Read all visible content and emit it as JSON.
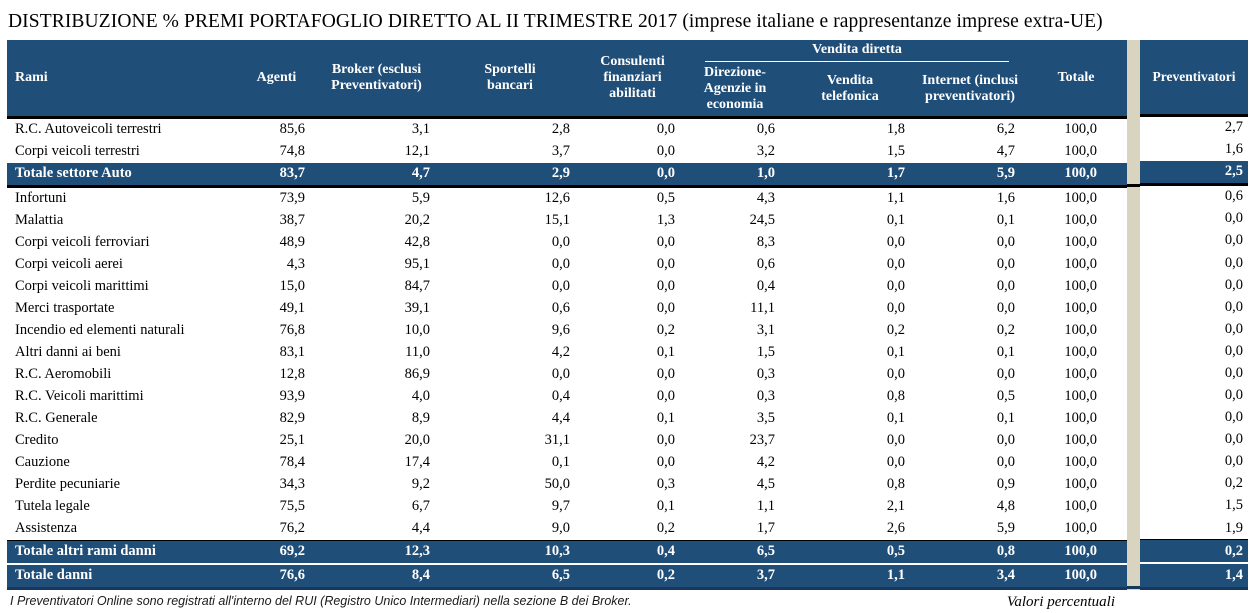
{
  "title": "DISTRIBUZIONE % PREMI PORTAFOGLIO DIRETTO AL II TRIMESTRE 2017 (imprese italiane e rappresentanze imprese extra-UE)",
  "colors": {
    "header_blue": "#1F4E79",
    "total_row_blue": "#1F4E79",
    "section_divider_beige": "#D9D4BF",
    "bottom_line_navy": "#17375E",
    "header_text": "#FFFFFF"
  },
  "header": {
    "rami": "Rami",
    "agenti": "Agenti",
    "broker": "Broker (esclusi Preventivatori)",
    "sportelli": "Sportelli bancari",
    "consulenti": "Consulenti finanziari abilitati",
    "vendita_diretta_group": "Vendita diretta",
    "direzione": "Direzione-Agenzie in economia",
    "telefonica": "Vendita telefonica",
    "internet": "Internet (inclusi preventivatori)",
    "totale": "Totale",
    "preventivatori": "Preventivatori"
  },
  "rows": [
    {
      "label": "R.C. Autoveicoli terrestri",
      "type": "data",
      "values": [
        "85,6",
        "3,1",
        "2,8",
        "0,0",
        "0,6",
        "1,8",
        "6,2",
        "100,0"
      ],
      "preventivatori": "2,7"
    },
    {
      "label": "Corpi veicoli terrestri",
      "type": "data",
      "values": [
        "74,8",
        "12,1",
        "3,7",
        "0,0",
        "3,2",
        "1,5",
        "4,7",
        "100,0"
      ],
      "preventivatori": "1,6"
    },
    {
      "label": "Totale settore Auto",
      "type": "total",
      "divider_after": true,
      "values": [
        "83,7",
        "4,7",
        "2,9",
        "0,0",
        "1,0",
        "1,7",
        "5,9",
        "100,0"
      ],
      "preventivatori": "2,5"
    },
    {
      "label": "Infortuni",
      "type": "data",
      "values": [
        "73,9",
        "5,9",
        "12,6",
        "0,5",
        "4,3",
        "1,1",
        "1,6",
        "100,0"
      ],
      "preventivatori": "0,6"
    },
    {
      "label": "Malattia",
      "type": "data",
      "values": [
        "38,7",
        "20,2",
        "15,1",
        "1,3",
        "24,5",
        "0,1",
        "0,1",
        "100,0"
      ],
      "preventivatori": "0,0"
    },
    {
      "label": "Corpi veicoli ferroviari",
      "type": "data",
      "values": [
        "48,9",
        "42,8",
        "0,0",
        "0,0",
        "8,3",
        "0,0",
        "0,0",
        "100,0"
      ],
      "preventivatori": "0,0"
    },
    {
      "label": "Corpi veicoli aerei",
      "type": "data",
      "values": [
        "4,3",
        "95,1",
        "0,0",
        "0,0",
        "0,6",
        "0,0",
        "0,0",
        "100,0"
      ],
      "preventivatori": "0,0"
    },
    {
      "label": "Corpi veicoli marittimi",
      "type": "data",
      "values": [
        "15,0",
        "84,7",
        "0,0",
        "0,0",
        "0,4",
        "0,0",
        "0,0",
        "100,0"
      ],
      "preventivatori": "0,0"
    },
    {
      "label": "Merci trasportate",
      "type": "data",
      "values": [
        "49,1",
        "39,1",
        "0,6",
        "0,0",
        "11,1",
        "0,0",
        "0,0",
        "100,0"
      ],
      "preventivatori": "0,0"
    },
    {
      "label": "Incendio ed elementi naturali",
      "type": "data",
      "values": [
        "76,8",
        "10,0",
        "9,6",
        "0,2",
        "3,1",
        "0,2",
        "0,2",
        "100,0"
      ],
      "preventivatori": "0,0"
    },
    {
      "label": "Altri danni ai beni",
      "type": "data",
      "values": [
        "83,1",
        "11,0",
        "4,2",
        "0,1",
        "1,5",
        "0,1",
        "0,1",
        "100,0"
      ],
      "preventivatori": "0,0"
    },
    {
      "label": "R.C. Aeromobili",
      "type": "data",
      "values": [
        "12,8",
        "86,9",
        "0,0",
        "0,0",
        "0,3",
        "0,0",
        "0,0",
        "100,0"
      ],
      "preventivatori": "0,0"
    },
    {
      "label": "R.C. Veicoli marittimi",
      "type": "data",
      "values": [
        "93,9",
        "4,0",
        "0,4",
        "0,0",
        "0,3",
        "0,8",
        "0,5",
        "100,0"
      ],
      "preventivatori": "0,0"
    },
    {
      "label": "R.C. Generale",
      "type": "data",
      "values": [
        "82,9",
        "8,9",
        "4,4",
        "0,1",
        "3,5",
        "0,1",
        "0,1",
        "100,0"
      ],
      "preventivatori": "0,0"
    },
    {
      "label": "Credito",
      "type": "data",
      "values": [
        "25,1",
        "20,0",
        "31,1",
        "0,0",
        "23,7",
        "0,0",
        "0,0",
        "100,0"
      ],
      "preventivatori": "0,0"
    },
    {
      "label": "Cauzione",
      "type": "data",
      "values": [
        "78,4",
        "17,4",
        "0,1",
        "0,0",
        "4,2",
        "0,0",
        "0,0",
        "100,0"
      ],
      "preventivatori": "0,0"
    },
    {
      "label": "Perdite pecuniarie",
      "type": "data",
      "values": [
        "34,3",
        "9,2",
        "50,0",
        "0,3",
        "4,5",
        "0,8",
        "0,9",
        "100,0"
      ],
      "preventivatori": "0,2"
    },
    {
      "label": "Tutela legale",
      "type": "data",
      "values": [
        "75,5",
        "6,7",
        "9,7",
        "0,1",
        "1,1",
        "2,1",
        "4,8",
        "100,0"
      ],
      "preventivatori": "1,5"
    },
    {
      "label": "Assistenza",
      "type": "data",
      "values": [
        "76,2",
        "4,4",
        "9,0",
        "0,2",
        "1,7",
        "2,6",
        "5,9",
        "100,0"
      ],
      "preventivatori": "1,9"
    },
    {
      "label": "Totale altri rami danni",
      "type": "total",
      "upper_total": true,
      "values": [
        "69,2",
        "12,3",
        "10,3",
        "0,4",
        "6,5",
        "0,5",
        "0,8",
        "100,0"
      ],
      "preventivatori": "0,2"
    },
    {
      "label": "Totale danni",
      "type": "total",
      "values": [
        "76,6",
        "8,4",
        "6,5",
        "0,2",
        "3,7",
        "1,1",
        "3,4",
        "100,0"
      ],
      "preventivatori": "1,4"
    }
  ],
  "footer": {
    "note": "I Preventivatori Online sono registrati all'interno del RUI (Registro Unico Intermediari) nella sezione B dei Broker.",
    "right_note": "Valori percentuali"
  }
}
